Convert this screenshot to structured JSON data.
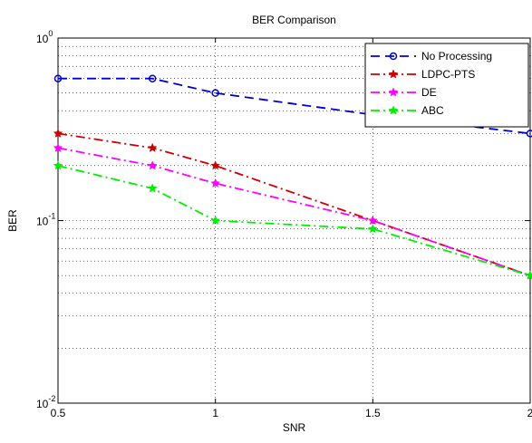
{
  "chart_data": {
    "type": "line",
    "title": "BER Comparison",
    "xlabel": "SNR",
    "ylabel": "BER",
    "xlim": [
      0.5,
      2
    ],
    "ylim": [
      0.01,
      1
    ],
    "yscale": "log",
    "grid": true,
    "legend_position": "top-right",
    "x_ticks": [
      0.5,
      1,
      1.5,
      2
    ],
    "x_tick_labels": [
      "0.5",
      "1",
      "1.5",
      "2"
    ],
    "y_ticks": [
      0.01,
      0.1,
      1
    ],
    "y_tick_labels": [
      {
        "base": "10",
        "exp": "-2"
      },
      {
        "base": "10",
        "exp": "-1"
      },
      {
        "base": "10",
        "exp": "0"
      }
    ],
    "x": [
      0.5,
      0.8,
      1,
      1.5,
      2
    ],
    "series": [
      {
        "name": "No Processing",
        "values": [
          0.6,
          0.6,
          0.5,
          0.38,
          0.3
        ],
        "color": "#0000cc",
        "marker": "circle",
        "dash": "10,6"
      },
      {
        "name": "LDPC-PTS",
        "values": [
          0.3,
          0.25,
          0.2,
          0.1,
          0.05
        ],
        "color": "#cc0000",
        "marker": "star",
        "dash": "10,4,2,4"
      },
      {
        "name": "DE",
        "values": [
          0.25,
          0.2,
          0.16,
          0.1,
          0.05
        ],
        "color": "#ff00ff",
        "marker": "star",
        "dash": "10,4,2,4"
      },
      {
        "name": "ABC",
        "values": [
          0.2,
          0.15,
          0.1,
          0.09,
          0.05
        ],
        "color": "#00ee00",
        "marker": "star",
        "dash": "10,4,2,4"
      }
    ]
  }
}
